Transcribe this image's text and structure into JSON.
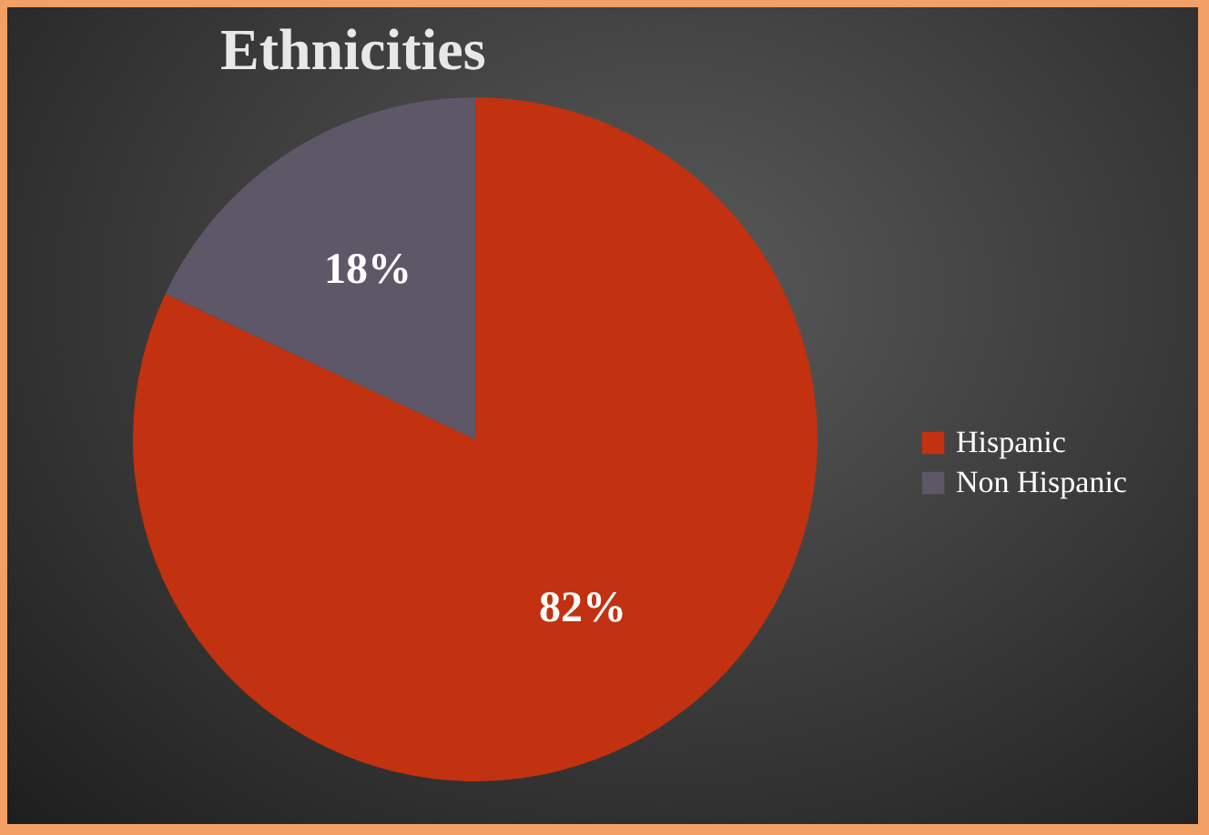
{
  "chart_data": {
    "type": "pie",
    "title": "Ethnicities",
    "categories": [
      "Hispanic",
      "Non Hispanic"
    ],
    "values": [
      82,
      18
    ],
    "colors": [
      "#c23110",
      "#5e5767"
    ],
    "value_labels": [
      "82%",
      "18%"
    ],
    "legend": "right"
  }
}
